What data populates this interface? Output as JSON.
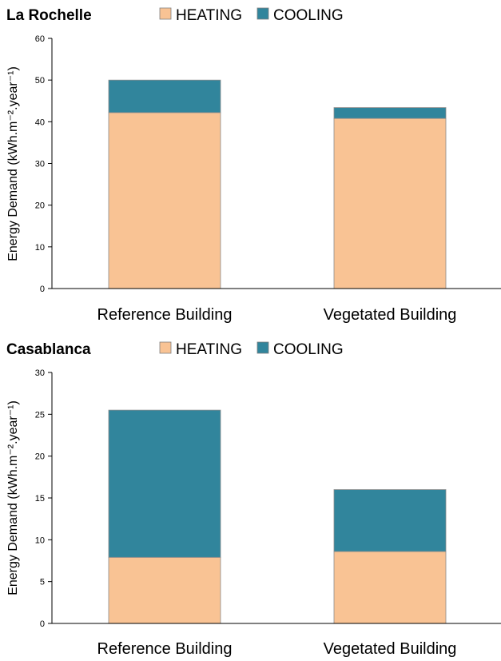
{
  "chart_data": [
    {
      "type": "bar",
      "stacked": true,
      "title": "La Rochelle",
      "categories": [
        "Reference Building",
        "Vegetated Building"
      ],
      "series": [
        {
          "name": "HEATING",
          "color": "#F9C394",
          "values": [
            42.2,
            40.8
          ]
        },
        {
          "name": "COOLING",
          "color": "#31859C",
          "values": [
            7.8,
            2.6
          ]
        }
      ],
      "ylabel": "Energy Demand (kWh.m⁻².year⁻¹)",
      "ylim": [
        0,
        60
      ],
      "yticks": [
        0,
        10,
        20,
        30,
        40,
        50,
        60
      ],
      "legend": "top"
    },
    {
      "type": "bar",
      "stacked": true,
      "title": "Casablanca",
      "categories": [
        "Reference Building",
        "Vegetated Building"
      ],
      "series": [
        {
          "name": "HEATING",
          "color": "#F9C394",
          "values": [
            7.9,
            8.6
          ]
        },
        {
          "name": "COOLING",
          "color": "#31859C",
          "values": [
            17.6,
            7.4
          ]
        }
      ],
      "ylabel": "Energy Demand (kWh.m⁻².year⁻¹)",
      "ylim": [
        0,
        30
      ],
      "yticks": [
        0,
        5,
        10,
        15,
        20,
        25,
        30
      ],
      "legend": "top"
    }
  ]
}
